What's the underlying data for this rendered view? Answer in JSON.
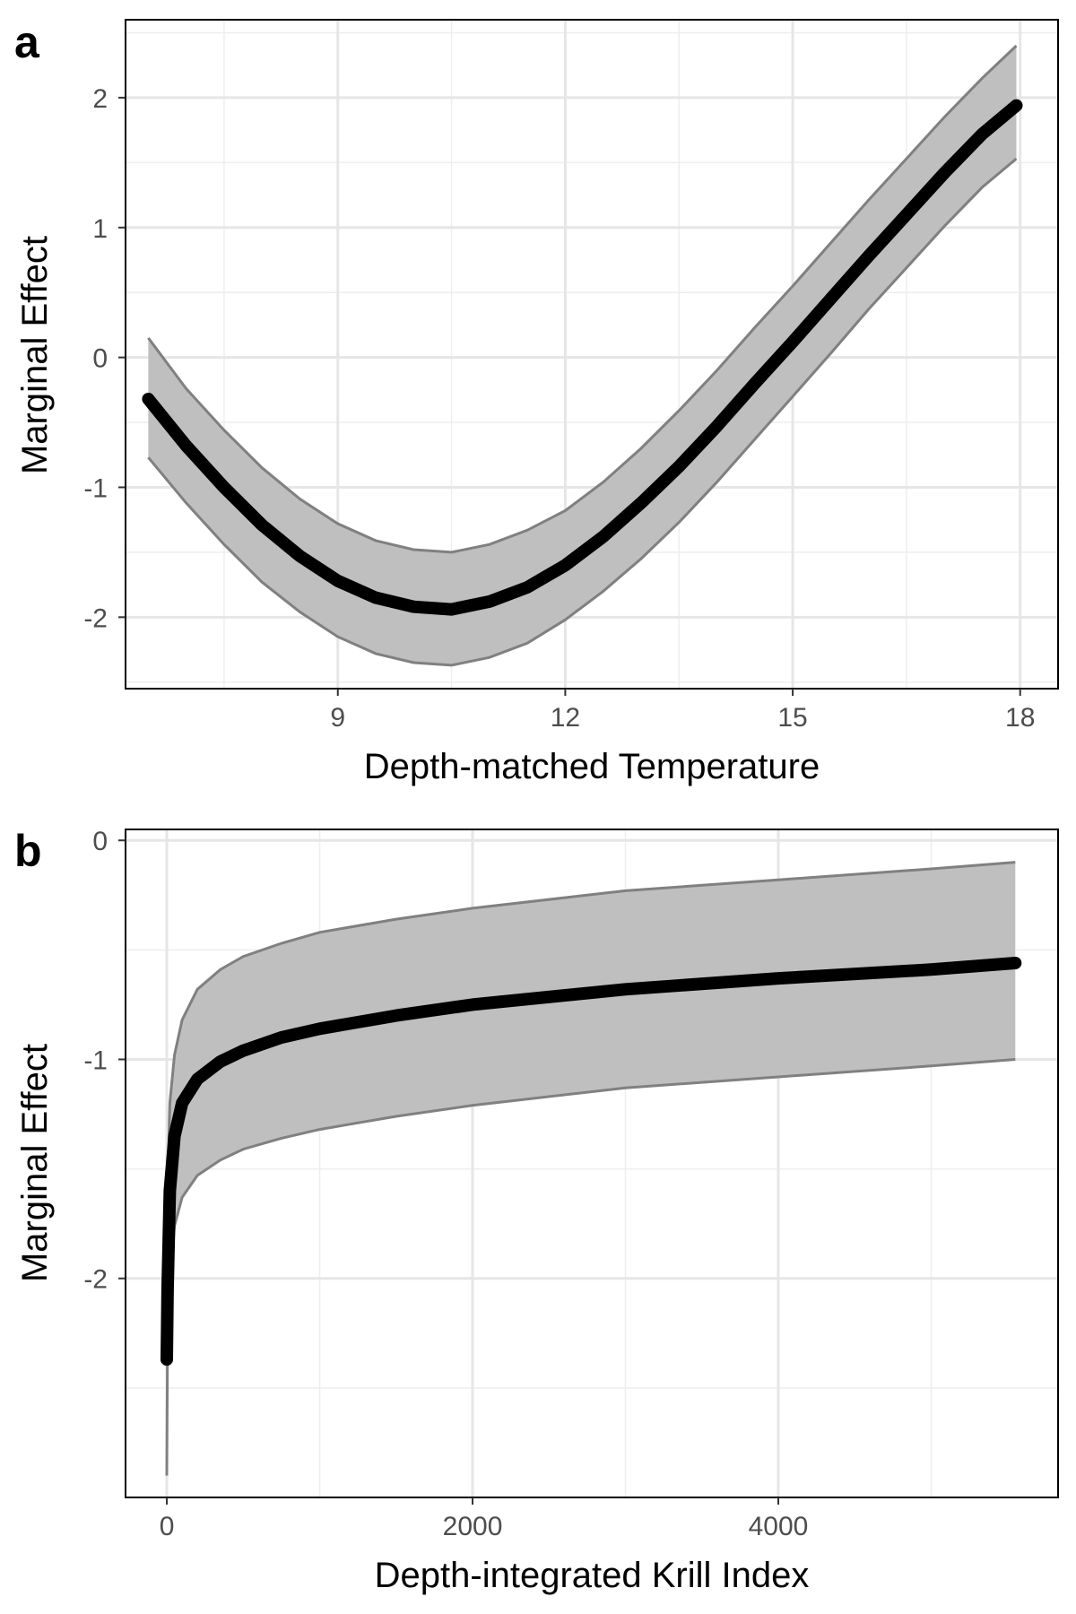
{
  "chart_data": [
    {
      "panel": "a",
      "type": "line",
      "title": "",
      "xlabel": "Depth-matched Temperature",
      "ylabel": "Marginal Effect",
      "xlim": [
        6.2,
        18.5
      ],
      "ylim": [
        -2.55,
        2.6
      ],
      "xticks": [
        9,
        12,
        15,
        18
      ],
      "yticks": [
        -2,
        -1,
        0,
        1,
        2
      ],
      "grid": true,
      "series": [
        {
          "x": [
            6.5,
            7,
            7.5,
            8,
            8.5,
            9,
            9.5,
            10,
            10.5,
            11,
            11.5,
            12,
            12.5,
            13,
            13.5,
            14,
            14.5,
            15,
            15.5,
            16,
            16.5,
            17,
            17.5,
            17.95
          ],
          "fit": [
            -0.32,
            -0.68,
            -1.0,
            -1.29,
            -1.53,
            -1.72,
            -1.85,
            -1.92,
            -1.94,
            -1.88,
            -1.77,
            -1.6,
            -1.38,
            -1.12,
            -0.84,
            -0.53,
            -0.2,
            0.12,
            0.45,
            0.78,
            1.1,
            1.42,
            1.72,
            1.94
          ],
          "lower": [
            -0.77,
            -1.12,
            -1.44,
            -1.73,
            -1.96,
            -2.15,
            -2.28,
            -2.35,
            -2.37,
            -2.31,
            -2.2,
            -2.02,
            -1.8,
            -1.55,
            -1.27,
            -0.96,
            -0.63,
            -0.3,
            0.03,
            0.37,
            0.69,
            1.01,
            1.31,
            1.53
          ],
          "upper": [
            0.15,
            -0.24,
            -0.56,
            -0.85,
            -1.09,
            -1.28,
            -1.41,
            -1.48,
            -1.5,
            -1.44,
            -1.33,
            -1.18,
            -0.96,
            -0.7,
            -0.41,
            -0.1,
            0.23,
            0.55,
            0.88,
            1.21,
            1.53,
            1.85,
            2.15,
            2.4
          ]
        }
      ]
    },
    {
      "panel": "b",
      "type": "line",
      "title": "",
      "xlabel": "Depth-integrated Krill Index",
      "ylabel": "Marginal Effect",
      "xlim": [
        -270,
        5830
      ],
      "ylim": [
        -3.0,
        0.05
      ],
      "xticks": [
        0,
        2000,
        4000
      ],
      "yticks": [
        -2,
        -1,
        0
      ],
      "grid": true,
      "series": [
        {
          "x": [
            0,
            5,
            20,
            50,
            100,
            200,
            350,
            500,
            750,
            1000,
            1500,
            2000,
            3000,
            4000,
            5000,
            5550
          ],
          "fit": [
            -2.37,
            -2.05,
            -1.6,
            -1.35,
            -1.2,
            -1.09,
            -1.01,
            -0.96,
            -0.9,
            -0.86,
            -0.8,
            -0.75,
            -0.68,
            -0.63,
            -0.59,
            -0.56
          ],
          "lower": [
            -2.9,
            -2.2,
            -2.0,
            -1.76,
            -1.63,
            -1.53,
            -1.46,
            -1.41,
            -1.36,
            -1.32,
            -1.26,
            -1.21,
            -1.13,
            -1.08,
            -1.03,
            -1.0
          ],
          "upper": [
            -1.87,
            -1.6,
            -1.2,
            -0.98,
            -0.82,
            -0.68,
            -0.59,
            -0.53,
            -0.47,
            -0.42,
            -0.36,
            -0.31,
            -0.23,
            -0.18,
            -0.13,
            -0.1
          ]
        }
      ]
    }
  ]
}
